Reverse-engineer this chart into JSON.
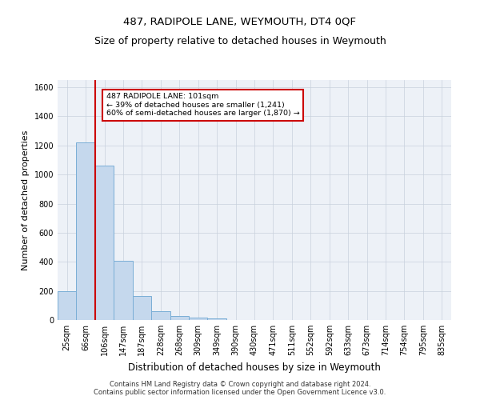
{
  "title": "487, RADIPOLE LANE, WEYMOUTH, DT4 0QF",
  "subtitle": "Size of property relative to detached houses in Weymouth",
  "xlabel": "Distribution of detached houses by size in Weymouth",
  "ylabel": "Number of detached properties",
  "footer_line1": "Contains HM Land Registry data © Crown copyright and database right 2024.",
  "footer_line2": "Contains public sector information licensed under the Open Government Licence v3.0.",
  "categories": [
    "25sqm",
    "66sqm",
    "106sqm",
    "147sqm",
    "187sqm",
    "228sqm",
    "268sqm",
    "309sqm",
    "349sqm",
    "390sqm",
    "430sqm",
    "471sqm",
    "511sqm",
    "552sqm",
    "592sqm",
    "633sqm",
    "673sqm",
    "714sqm",
    "754sqm",
    "795sqm",
    "835sqm"
  ],
  "values": [
    200,
    1220,
    1060,
    405,
    163,
    60,
    28,
    18,
    12,
    0,
    0,
    0,
    0,
    0,
    0,
    0,
    0,
    0,
    0,
    0,
    0
  ],
  "bar_color": "#c5d8ed",
  "bar_edge_color": "#7aaed6",
  "highlight_line_color": "#cc0000",
  "annotation_line1": "487 RADIPOLE LANE: 101sqm",
  "annotation_line2": "← 39% of detached houses are smaller (1,241)",
  "annotation_line3": "60% of semi-detached houses are larger (1,870) →",
  "annotation_box_color": "#ffffff",
  "annotation_box_edge": "#cc0000",
  "ylim": [
    0,
    1650
  ],
  "yticks": [
    0,
    200,
    400,
    600,
    800,
    1000,
    1200,
    1400,
    1600
  ],
  "grid_color": "#c8d0dc",
  "bg_color": "#edf1f7",
  "title_fontsize": 9.5,
  "subtitle_fontsize": 9,
  "ylabel_fontsize": 8,
  "xlabel_fontsize": 8.5,
  "tick_fontsize": 7,
  "footer_fontsize": 6
}
